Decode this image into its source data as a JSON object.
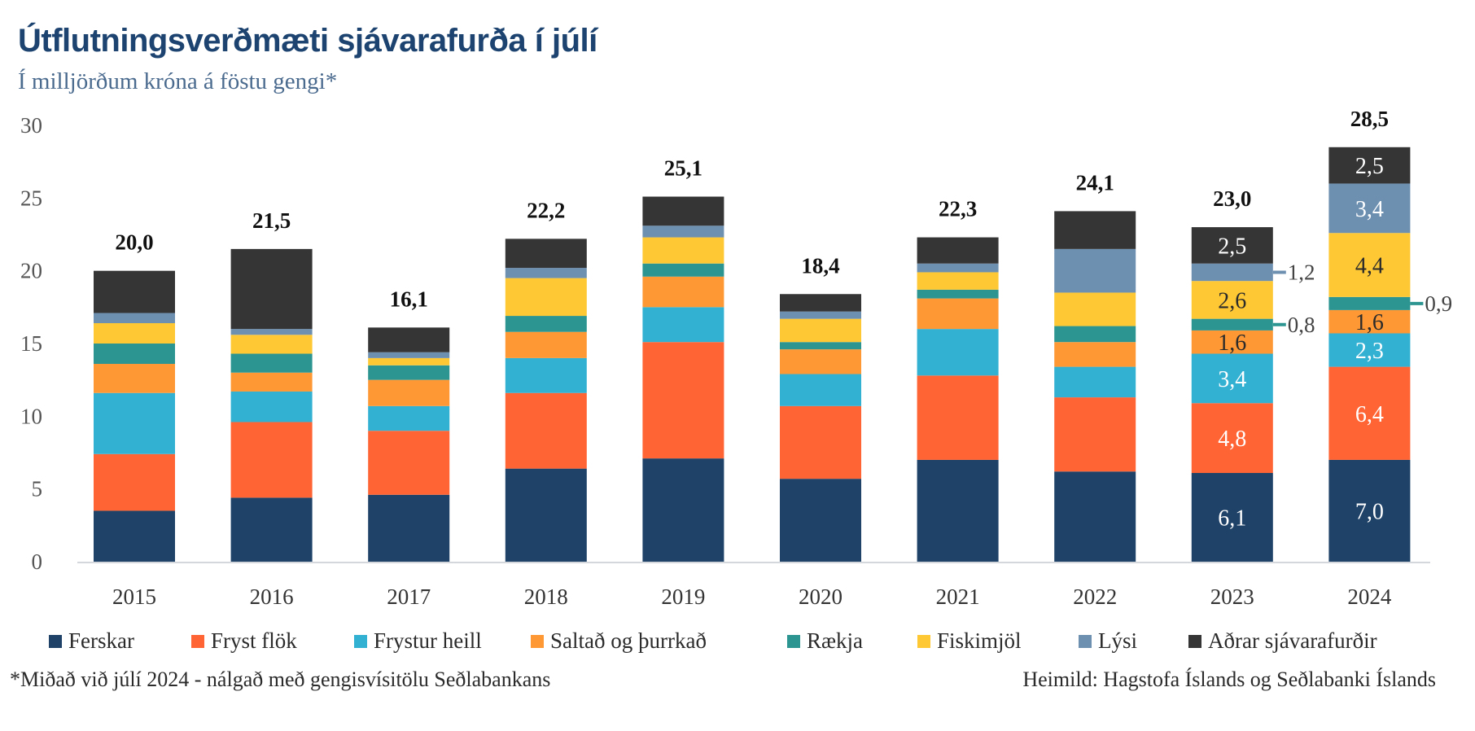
{
  "header": {
    "title": "Útflutningsverðmæti sjávarafurða í júlí",
    "subtitle": "Í milljörðum króna á föstu gengi*"
  },
  "footer": {
    "footnote": "*Miðað við júlí 2024 - nálgað með gengisvísitölu Seðlabankans",
    "source": "Heimild: Hagstofa Íslands og Seðlabanki Íslands"
  },
  "chart_data": {
    "type": "bar",
    "stacked": true,
    "title": "Útflutningsverðmæti sjávarafurða í júlí",
    "subtitle": "Í milljörðum króna á föstu gengi*",
    "xlabel": "",
    "ylabel": "",
    "ylim": [
      0,
      30
    ],
    "yticks": [
      0,
      5,
      10,
      15,
      20,
      25,
      30
    ],
    "grid": false,
    "legend_position": "bottom",
    "categories": [
      "2015",
      "2016",
      "2017",
      "2018",
      "2019",
      "2020",
      "2021",
      "2022",
      "2023",
      "2024"
    ],
    "totals": [
      "20,0",
      "21,5",
      "16,1",
      "22,2",
      "25,1",
      "18,4",
      "22,3",
      "24,1",
      "23,0",
      "28,5"
    ],
    "series": [
      {
        "name": "Ferskar",
        "color": "#1f4268",
        "label_color": "#ffffff",
        "values": [
          3.5,
          4.4,
          4.6,
          6.4,
          7.1,
          5.7,
          7.0,
          6.2,
          6.1,
          7.0
        ]
      },
      {
        "name": "Fryst flök",
        "color": "#fe6434",
        "label_color": "#ffffff",
        "values": [
          3.9,
          5.2,
          4.4,
          5.2,
          8.0,
          5.0,
          5.8,
          5.1,
          4.8,
          6.4
        ]
      },
      {
        "name": "Frystur heill",
        "color": "#33b1d3",
        "label_color": "#ffffff",
        "values": [
          4.2,
          2.1,
          1.7,
          2.4,
          2.4,
          2.2,
          3.2,
          2.1,
          3.4,
          2.3
        ]
      },
      {
        "name": "Saltað og þurrkað",
        "color": "#fd9835",
        "label_color": "#2b2b2b",
        "values": [
          2.0,
          1.3,
          1.8,
          1.8,
          2.1,
          1.7,
          2.1,
          1.7,
          1.6,
          1.6
        ]
      },
      {
        "name": "Rækja",
        "color": "#2d9591",
        "label_color": "#2b2b2b",
        "values": [
          1.4,
          1.3,
          1.0,
          1.1,
          0.9,
          0.5,
          0.6,
          1.1,
          0.8,
          0.9
        ]
      },
      {
        "name": "Fiskimjöl",
        "color": "#fdc834",
        "label_color": "#2b2b2b",
        "values": [
          1.4,
          1.3,
          0.5,
          2.6,
          1.8,
          1.6,
          1.2,
          2.3,
          2.6,
          4.4
        ]
      },
      {
        "name": "Lýsi",
        "color": "#6d8fb0",
        "label_color": "#ffffff",
        "values": [
          0.7,
          0.4,
          0.4,
          0.7,
          0.8,
          0.5,
          0.6,
          3.0,
          1.2,
          3.4
        ]
      },
      {
        "name": "Aðrar sjávarafurðir",
        "color": "#353535",
        "label_color": "#ffffff",
        "values": [
          2.9,
          5.5,
          1.7,
          2.0,
          2.0,
          1.2,
          1.8,
          2.6,
          2.5,
          2.5
        ]
      }
    ],
    "segment_labels": {
      "2023": [
        "6,1",
        "4,8",
        "3,4",
        "1,6",
        "0,8",
        "2,6",
        "1,2",
        "2,5"
      ],
      "2024": [
        "7,0",
        "6,4",
        "2,3",
        "1,6",
        "0,9",
        "4,4",
        "3,4",
        "2,5"
      ]
    },
    "outside_labels": [
      {
        "category": "2023",
        "series": "Rækja",
        "text": "0,8"
      },
      {
        "category": "2023",
        "series": "Lýsi",
        "text": "1,2"
      },
      {
        "category": "2024",
        "series": "Rækja",
        "text": "0,9"
      }
    ]
  }
}
